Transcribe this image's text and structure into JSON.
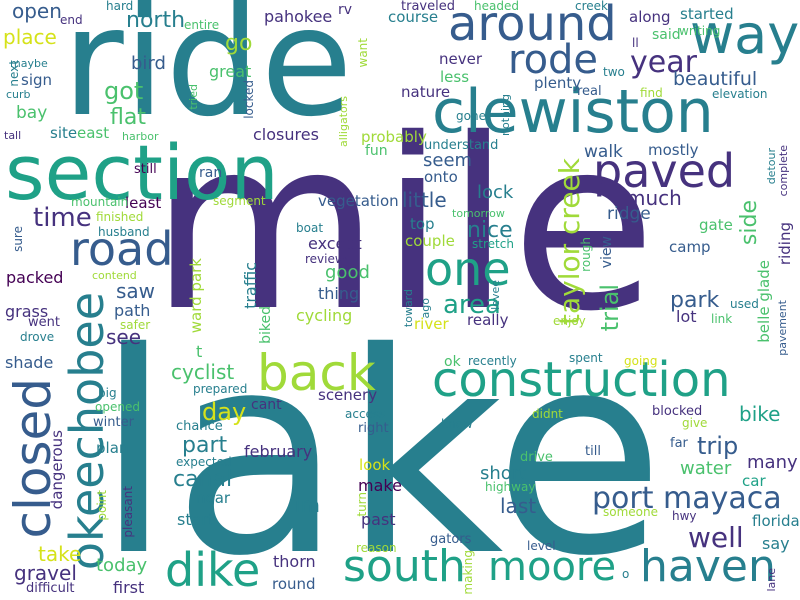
{
  "palette": [
    "#440154",
    "#46327e",
    "#365c8d",
    "#277f8e",
    "#1fa187",
    "#4ac16d",
    "#a0da39",
    "#d5e21a"
  ],
  "words": [
    {
      "text": "lake",
      "color": "#277f8e"
    },
    {
      "text": "mile",
      "color": "#46327e"
    },
    {
      "text": "ride",
      "color": "#277f8e"
    },
    {
      "text": "section",
      "color": "#1fa187"
    },
    {
      "text": "clewiston",
      "color": "#277f8e"
    },
    {
      "text": "construction",
      "color": "#1fa187"
    },
    {
      "text": "around",
      "color": "#365c8d"
    },
    {
      "text": "way",
      "color": "#277f8e"
    },
    {
      "text": "okeechobee",
      "color": "#277f8e"
    },
    {
      "text": "closed",
      "color": "#365c8d"
    },
    {
      "text": "back",
      "color": "#a0da39"
    },
    {
      "text": "road",
      "color": "#365c8d"
    },
    {
      "text": "paved",
      "color": "#46327e"
    },
    {
      "text": "south",
      "color": "#1fa187"
    },
    {
      "text": "moore",
      "color": "#1fa187"
    },
    {
      "text": "haven",
      "color": "#277f8e"
    },
    {
      "text": "dike",
      "color": "#1fa187"
    },
    {
      "text": "one",
      "color": "#1fa187"
    },
    {
      "text": "rode",
      "color": "#365c8d"
    },
    {
      "text": "port",
      "color": "#365c8d"
    },
    {
      "text": "mayaca",
      "color": "#365c8d"
    },
    {
      "text": "taylor creek",
      "color": "#a0da39"
    },
    {
      "text": "trial",
      "color": "#4ac16d"
    },
    {
      "text": "year",
      "color": "#46327e"
    },
    {
      "text": "time",
      "color": "#46327e"
    },
    {
      "text": "area",
      "color": "#1fa187"
    },
    {
      "text": "well",
      "color": "#46327e"
    },
    {
      "text": "beautiful",
      "color": "#365c8d"
    },
    {
      "text": "flat",
      "color": "#4ac16d"
    },
    {
      "text": "got",
      "color": "#4ac16d"
    },
    {
      "text": "nice",
      "color": "#277f8e"
    },
    {
      "text": "canal",
      "color": "#277f8e"
    },
    {
      "text": "part",
      "color": "#277f8e"
    },
    {
      "text": "day",
      "color": "#d5e21a"
    },
    {
      "text": "trip",
      "color": "#365c8d"
    },
    {
      "text": "bike",
      "color": "#1fa187"
    },
    {
      "text": "many",
      "color": "#46327e"
    },
    {
      "text": "water",
      "color": "#4ac16d"
    },
    {
      "text": "short",
      "color": "#277f8e"
    },
    {
      "text": "last",
      "color": "#365c8d"
    },
    {
      "text": "side",
      "color": "#4ac16d"
    },
    {
      "text": "much",
      "color": "#46327e"
    },
    {
      "text": "park",
      "color": "#365c8d"
    },
    {
      "text": "lock",
      "color": "#277f8e"
    },
    {
      "text": "seem",
      "color": "#365c8d"
    },
    {
      "text": "little",
      "color": "#365c8d"
    },
    {
      "text": "go",
      "color": "#a0da39"
    },
    {
      "text": "north",
      "color": "#277f8e"
    },
    {
      "text": "open",
      "color": "#365c8d"
    },
    {
      "text": "place",
      "color": "#d5e21a"
    },
    {
      "text": "bird",
      "color": "#365c8d"
    },
    {
      "text": "see",
      "color": "#46327e"
    },
    {
      "text": "saw",
      "color": "#365c8d"
    },
    {
      "text": "path",
      "color": "#365c8d"
    },
    {
      "text": "ridge",
      "color": "#365c8d"
    },
    {
      "text": "walk",
      "color": "#365c8d"
    },
    {
      "text": "cyclist",
      "color": "#4ac16d"
    },
    {
      "text": "take",
      "color": "#d5e21a"
    },
    {
      "text": "gravel",
      "color": "#46327e"
    },
    {
      "text": "today",
      "color": "#4ac16d"
    },
    {
      "text": "first",
      "color": "#46327e"
    },
    {
      "text": "im",
      "color": "#277f8e"
    },
    {
      "text": "good",
      "color": "#4ac16d"
    },
    {
      "text": "except",
      "color": "#46327e"
    },
    {
      "text": "thing",
      "color": "#365c8d"
    },
    {
      "text": "cycling",
      "color": "#a0da39"
    },
    {
      "text": "packed",
      "color": "#440154"
    },
    {
      "text": "grass",
      "color": "#46327e"
    },
    {
      "text": "shade",
      "color": "#365c8d"
    },
    {
      "text": "february",
      "color": "#46327e"
    },
    {
      "text": "make",
      "color": "#440154"
    },
    {
      "text": "past",
      "color": "#46327e"
    },
    {
      "text": "start",
      "color": "#277f8e"
    },
    {
      "text": "say",
      "color": "#277f8e"
    },
    {
      "text": "dangerous",
      "color": "#46327e"
    },
    {
      "text": "pahokee",
      "color": "#46327e"
    },
    {
      "text": "great",
      "color": "#4ac16d"
    },
    {
      "text": "closures",
      "color": "#46327e"
    },
    {
      "text": "east",
      "color": "#4ac16d"
    },
    {
      "text": "site",
      "color": "#277f8e"
    },
    {
      "text": "bay",
      "color": "#4ac16d"
    },
    {
      "text": "sign",
      "color": "#365c8d"
    },
    {
      "text": "course",
      "color": "#277f8e"
    },
    {
      "text": "nature",
      "color": "#46327e"
    },
    {
      "text": "never",
      "color": "#46327e"
    },
    {
      "text": "less",
      "color": "#4ac16d"
    },
    {
      "text": "plenty",
      "color": "#365c8d"
    },
    {
      "text": "started",
      "color": "#277f8e"
    },
    {
      "text": "along",
      "color": "#46327e"
    },
    {
      "text": "said",
      "color": "#4ac16d"
    },
    {
      "text": "mostly",
      "color": "#365c8d"
    },
    {
      "text": "probably",
      "color": "#a0da39"
    },
    {
      "text": "fun",
      "color": "#4ac16d"
    },
    {
      "text": "understand",
      "color": "#277f8e"
    },
    {
      "text": "onto",
      "color": "#365c8d"
    },
    {
      "text": "couple",
      "color": "#a0da39"
    },
    {
      "text": "top",
      "color": "#277f8e"
    },
    {
      "text": "really",
      "color": "#46327e"
    },
    {
      "text": "river",
      "color": "#d5e21a"
    },
    {
      "text": "lot",
      "color": "#46327e"
    },
    {
      "text": "camp",
      "color": "#365c8d"
    },
    {
      "text": "gate",
      "color": "#4ac16d"
    },
    {
      "text": "view",
      "color": "#365c8d"
    },
    {
      "text": "rough",
      "color": "#4ac16d"
    },
    {
      "text": "traffic",
      "color": "#277f8e"
    },
    {
      "text": "ward park",
      "color": "#a0da39"
    },
    {
      "text": "biked",
      "color": "#4ac16d"
    },
    {
      "text": "vegetation",
      "color": "#365c8d"
    },
    {
      "text": "reviews",
      "color": "#46327e"
    },
    {
      "text": "scenery",
      "color": "#46327e"
    },
    {
      "text": "cant",
      "color": "#46327e"
    },
    {
      "text": "ran",
      "color": "#365c8d"
    },
    {
      "text": "least",
      "color": "#440154"
    },
    {
      "text": "recently",
      "color": "#277f8e"
    },
    {
      "text": "ok",
      "color": "#4ac16d"
    },
    {
      "text": "florida",
      "color": "#277f8e"
    },
    {
      "text": "car",
      "color": "#1fa187"
    },
    {
      "text": "thorn",
      "color": "#46327e"
    },
    {
      "text": "round",
      "color": "#365c8d"
    },
    {
      "text": "look",
      "color": "#d5e21a"
    },
    {
      "text": "near",
      "color": "#277f8e"
    },
    {
      "text": "plan",
      "color": "#277f8e"
    },
    {
      "text": "winter",
      "color": "#365c8d"
    },
    {
      "text": "chance",
      "color": "#277f8e"
    },
    {
      "text": "expected",
      "color": "#277f8e"
    },
    {
      "text": "prepared",
      "color": "#277f8e"
    },
    {
      "text": "access",
      "color": "#277f8e"
    },
    {
      "text": "right",
      "color": "#365c8d"
    },
    {
      "text": "know",
      "color": "#277f8e"
    },
    {
      "text": "didnt",
      "color": "#a0da39"
    },
    {
      "text": "blocked",
      "color": "#46327e"
    },
    {
      "text": "give",
      "color": "#a0da39"
    },
    {
      "text": "far",
      "color": "#365c8d"
    },
    {
      "text": "drive",
      "color": "#4ac16d"
    },
    {
      "text": "till",
      "color": "#365c8d"
    },
    {
      "text": "highway",
      "color": "#4ac16d"
    },
    {
      "text": "gators",
      "color": "#365c8d"
    },
    {
      "text": "level",
      "color": "#365c8d"
    },
    {
      "text": "reason",
      "color": "#a0da39"
    },
    {
      "text": "hwy",
      "color": "#46327e"
    },
    {
      "text": "someone",
      "color": "#a0da39"
    },
    {
      "text": "difficult",
      "color": "#46327e"
    },
    {
      "text": "went",
      "color": "#46327e"
    },
    {
      "text": "drove",
      "color": "#277f8e"
    },
    {
      "text": "safer",
      "color": "#a0da39"
    },
    {
      "text": "big",
      "color": "#277f8e"
    },
    {
      "text": "opened",
      "color": "#4ac16d"
    },
    {
      "text": "husband",
      "color": "#277f8e"
    },
    {
      "text": "finished",
      "color": "#a0da39"
    },
    {
      "text": "mountain",
      "color": "#4ac16d"
    },
    {
      "text": "still",
      "color": "#440154"
    },
    {
      "text": "segment",
      "color": "#a0da39"
    },
    {
      "text": "boat",
      "color": "#277f8e"
    },
    {
      "text": "stretch",
      "color": "#1fa187"
    },
    {
      "text": "tomorrow",
      "color": "#4ac16d"
    },
    {
      "text": "gone",
      "color": "#277f8e"
    },
    {
      "text": "find",
      "color": "#a0da39"
    },
    {
      "text": "real",
      "color": "#365c8d"
    },
    {
      "text": "two",
      "color": "#277f8e"
    },
    {
      "text": "elevation",
      "color": "#277f8e"
    },
    {
      "text": "ll",
      "color": "#46327e"
    },
    {
      "text": "writing",
      "color": "#4ac16d"
    },
    {
      "text": "creek",
      "color": "#277f8e"
    },
    {
      "text": "headed",
      "color": "#4ac16d"
    },
    {
      "text": "traveled",
      "color": "#46327e"
    },
    {
      "text": "rv",
      "color": "#46327e"
    },
    {
      "text": "hard",
      "color": "#277f8e"
    },
    {
      "text": "entire",
      "color": "#4ac16d"
    },
    {
      "text": "end",
      "color": "#46327e"
    },
    {
      "text": "maybe",
      "color": "#277f8e"
    },
    {
      "text": "curb",
      "color": "#277f8e"
    },
    {
      "text": "tall",
      "color": "#46327e"
    },
    {
      "text": "harbor",
      "color": "#4ac16d"
    },
    {
      "text": "tried",
      "color": "#4ac16d"
    },
    {
      "text": "locked",
      "color": "#365c8d"
    },
    {
      "text": "want",
      "color": "#a0da39"
    },
    {
      "text": "alligators",
      "color": "#a0da39"
    },
    {
      "text": "nothing",
      "color": "#277f8e"
    },
    {
      "text": "next",
      "color": "#277f8e"
    },
    {
      "text": "turn",
      "color": "#a0da39"
    },
    {
      "text": "toward",
      "color": "#277f8e"
    },
    {
      "text": "ago",
      "color": "#277f8e"
    },
    {
      "text": "levee",
      "color": "#277f8e"
    },
    {
      "text": "enjoy",
      "color": "#a0da39"
    },
    {
      "text": "spent",
      "color": "#277f8e"
    },
    {
      "text": "going",
      "color": "#d5e21a"
    },
    {
      "text": "used",
      "color": "#277f8e"
    },
    {
      "text": "link",
      "color": "#4ac16d"
    },
    {
      "text": "pavement",
      "color": "#365c8d"
    },
    {
      "text": "belle glade",
      "color": "#4ac16d"
    },
    {
      "text": "riding",
      "color": "#46327e"
    },
    {
      "text": "complete",
      "color": "#46327e"
    },
    {
      "text": "detour",
      "color": "#277f8e"
    },
    {
      "text": "contend",
      "color": "#a0da39"
    },
    {
      "text": "sure",
      "color": "#365c8d"
    },
    {
      "text": "pleasant",
      "color": "#46327e"
    },
    {
      "text": "point",
      "color": "#a0da39"
    },
    {
      "text": "making",
      "color": "#a0da39"
    },
    {
      "text": "o",
      "color": "#277f8e"
    },
    {
      "text": "lane",
      "color": "#46327e"
    },
    {
      "text": "t",
      "color": "#4ac16d"
    }
  ]
}
